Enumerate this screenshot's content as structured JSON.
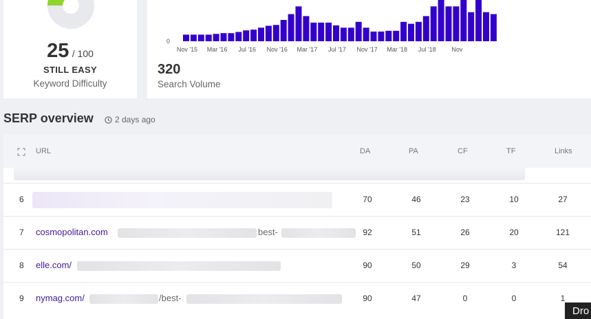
{
  "keyword_difficulty": {
    "score": "25",
    "max": "/ 100",
    "level": "STILL EASY",
    "label": "Keyword Difficulty",
    "score_fraction": 0.25,
    "colors": {
      "filled": "#8fd42a",
      "empty": "#e8e9ec"
    }
  },
  "search_volume": {
    "value": "320",
    "label": "Search Volume"
  },
  "chart_data": {
    "type": "bar",
    "color": "#3300cc",
    "y_tick_labels": [
      "0"
    ],
    "x_tick_labels": [
      "Nov '15",
      "Mar '16",
      "Jul '16",
      "Nov '16",
      "Mar '17",
      "Jul '17",
      "Nov '17",
      "Mar '18",
      "Jul '18",
      "Nov"
    ],
    "values": [
      170,
      170,
      170,
      170,
      190,
      210,
      210,
      240,
      280,
      300,
      350,
      400,
      420,
      550,
      700,
      900,
      650,
      480,
      480,
      480,
      410,
      350,
      350,
      500,
      350,
      250,
      250,
      270,
      270,
      500,
      450,
      500,
      650,
      900,
      1100,
      900,
      900,
      1100,
      750,
      1100,
      750,
      700
    ]
  },
  "serp": {
    "title": "SERP overview",
    "timestamp": "2 days ago",
    "columns": {
      "url": "URL",
      "da": "DA",
      "pa": "PA",
      "cf": "CF",
      "tf": "TF",
      "links": "Links"
    },
    "rows": [
      {
        "rank": "6",
        "url_domain": "",
        "url_mid": "",
        "da": "70",
        "pa": "46",
        "cf": "23",
        "tf": "10",
        "links": "27"
      },
      {
        "rank": "7",
        "url_domain": "cosmopolitan.com",
        "url_mid": "best-",
        "da": "92",
        "pa": "51",
        "cf": "26",
        "tf": "20",
        "links": "121"
      },
      {
        "rank": "8",
        "url_domain": "elle.com/",
        "url_mid": "",
        "da": "90",
        "pa": "50",
        "cf": "29",
        "tf": "3",
        "links": "54"
      },
      {
        "rank": "9",
        "url_domain": "nymag.com/",
        "url_mid": "/best-",
        "da": "90",
        "pa": "47",
        "cf": "0",
        "tf": "0",
        "links": "1"
      }
    ]
  },
  "drop_tab": "Dro"
}
